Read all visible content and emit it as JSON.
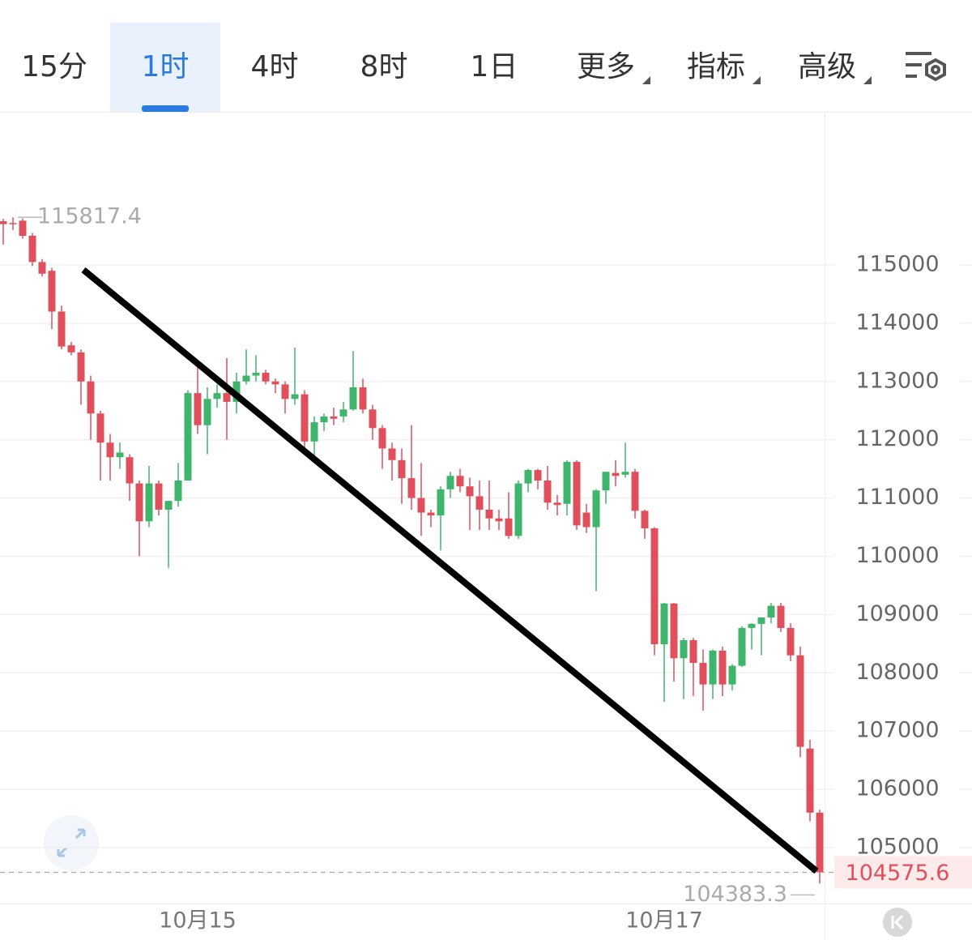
{
  "toolbar": {
    "tabs": [
      "15分",
      "1时",
      "4时",
      "8时",
      "1日",
      "更多",
      "指标",
      "高级"
    ],
    "active": 1
  },
  "chart_data": {
    "type": "candlestick",
    "categories": [
      null,
      null,
      null,
      null,
      null,
      null,
      null,
      null,
      null,
      null,
      null,
      null,
      null,
      null,
      null,
      null,
      null,
      null,
      null,
      null,
      "10月15",
      null,
      null,
      null,
      null,
      null,
      null,
      null,
      null,
      null,
      null,
      null,
      null,
      null,
      null,
      null,
      null,
      null,
      null,
      null,
      null,
      null,
      null,
      null,
      null,
      null,
      null,
      null,
      null,
      null,
      null,
      null,
      null,
      null,
      null,
      null,
      null,
      null,
      null,
      null,
      null,
      null,
      null,
      null,
      null,
      null,
      null,
      null,
      "10月17",
      null,
      null,
      null,
      null,
      null,
      null,
      null,
      null,
      null,
      null,
      null,
      null,
      null,
      null,
      null,
      null
    ],
    "open": [
      115750,
      115720,
      115760,
      115500,
      115050,
      114900,
      114200,
      113620,
      113500,
      113000,
      112450,
      111950,
      111700,
      111700,
      111250,
      110600,
      111250,
      110800,
      110950,
      111300,
      112800,
      112250,
      112700,
      112800,
      112650,
      113000,
      113100,
      113150,
      113000,
      112950,
      112700,
      112780,
      111970,
      112300,
      112400,
      112400,
      112520,
      112900,
      112520,
      112200,
      111850,
      111650,
      111340,
      111000,
      110750,
      110700,
      111150,
      111380,
      111200,
      111030,
      110800,
      110650,
      110650,
      110350,
      111250,
      111480,
      111300,
      110920,
      110900,
      111620,
      110750,
      110500,
      111130,
      111430,
      111400,
      111450,
      110780,
      110480,
      108490,
      109190,
      108250,
      108560,
      108170,
      107800,
      108380,
      107800,
      108120,
      108770,
      108840,
      108950,
      109150,
      108770,
      108300,
      106700,
      105600
    ],
    "high": [
      115790,
      115817.4,
      115800,
      115550,
      115100,
      114950,
      114300,
      113680,
      113550,
      113100,
      112500,
      112100,
      111950,
      111750,
      111300,
      111550,
      111300,
      110950,
      111600,
      112850,
      113250,
      112900,
      112950,
      113400,
      113150,
      113550,
      113450,
      113200,
      113050,
      113000,
      113580,
      112850,
      112400,
      112450,
      112550,
      112650,
      113520,
      113050,
      112600,
      112250,
      111950,
      111850,
      112250,
      111600,
      110800,
      111200,
      111450,
      111500,
      111350,
      111300,
      111300,
      110800,
      111100,
      111300,
      111500,
      111500,
      111550,
      111050,
      111650,
      111650,
      110900,
      111150,
      111450,
      111650,
      111950,
      111500,
      110800,
      110500,
      109200,
      109200,
      108600,
      108600,
      108400,
      108400,
      108450,
      108150,
      108800,
      108850,
      108950,
      109200,
      109200,
      108850,
      108450,
      106850,
      105650
    ],
    "low": [
      115350,
      115600,
      115450,
      114980,
      114800,
      113900,
      113550,
      113450,
      112600,
      112000,
      111300,
      111300,
      111500,
      110950,
      110000,
      110500,
      110700,
      109800,
      110850,
      111300,
      112100,
      111750,
      112550,
      112000,
      112450,
      112950,
      113000,
      112950,
      112800,
      112450,
      112600,
      111850,
      111700,
      112150,
      112250,
      112300,
      112500,
      112450,
      112000,
      111500,
      111300,
      110900,
      110800,
      110350,
      110500,
      110100,
      111000,
      111100,
      110450,
      110450,
      110450,
      110450,
      110300,
      110300,
      111100,
      111150,
      110800,
      110700,
      110700,
      110450,
      110400,
      109400,
      110900,
      111200,
      111350,
      110650,
      110300,
      108300,
      107500,
      107850,
      107550,
      107600,
      107350,
      107550,
      107600,
      107700,
      108100,
      108400,
      108300,
      108850,
      108700,
      108200,
      106550,
      105450,
      104383.3
    ],
    "close": [
      115700,
      115710,
      115500,
      115050,
      114850,
      114200,
      113600,
      113500,
      113000,
      112450,
      111950,
      111700,
      111780,
      111250,
      110600,
      111250,
      110800,
      110950,
      111300,
      112800,
      112250,
      112700,
      112800,
      112650,
      113000,
      113100,
      113150,
      113000,
      112950,
      112700,
      112780,
      111970,
      112300,
      112400,
      112360,
      112520,
      112900,
      112520,
      112200,
      111850,
      111650,
      111340,
      111000,
      110750,
      110700,
      111150,
      111380,
      111200,
      111030,
      110800,
      110650,
      110600,
      110350,
      111250,
      111480,
      111300,
      110920,
      110880,
      111620,
      110530,
      110500,
      111130,
      111450,
      111380,
      111450,
      110780,
      110480,
      108490,
      109190,
      108250,
      108560,
      108170,
      107800,
      108380,
      107800,
      108120,
      108770,
      108840,
      108950,
      109150,
      108770,
      108300,
      106730,
      105600,
      104575.6
    ],
    "up_color": "#3fb56c",
    "down_color": "#e0505c",
    "ylim": [
      104040,
      117600
    ],
    "yticks": [
      105000,
      106000,
      107000,
      108000,
      109000,
      110000,
      111000,
      112000,
      113000,
      114000,
      115000
    ],
    "grid": true
  }
}
